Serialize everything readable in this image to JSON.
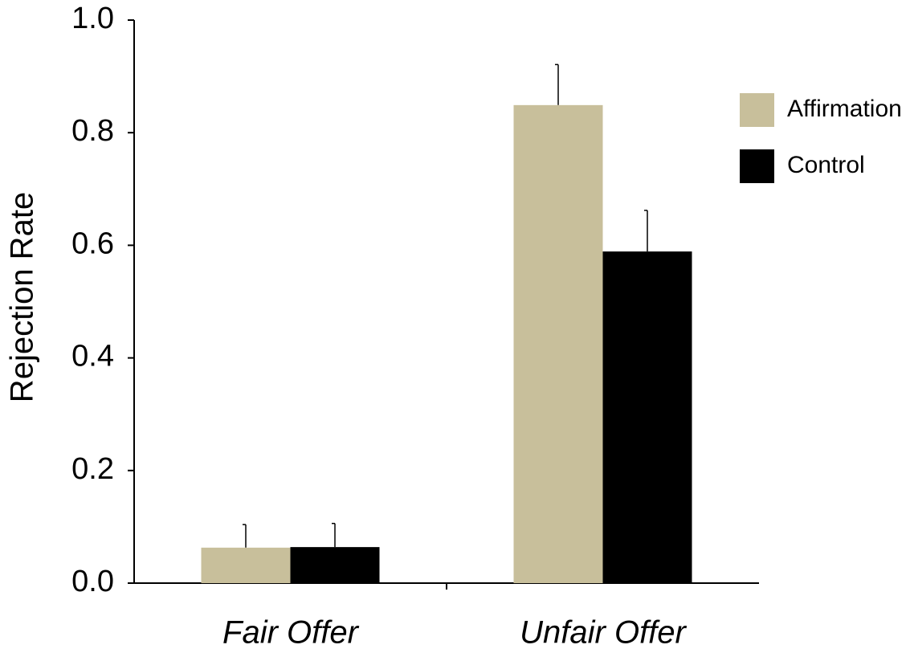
{
  "chart_data": {
    "type": "bar",
    "y_label": "Rejection Rate",
    "categories": [
      "Fair Offer",
      "Unfair Offer"
    ],
    "series": [
      {
        "name": "Affirmation",
        "color": "#c8bf9b",
        "values": [
          0.063,
          0.849
        ],
        "errors": [
          0.041,
          0.072
        ]
      },
      {
        "name": "Control",
        "color": "#000000",
        "values": [
          0.064,
          0.589
        ],
        "errors": [
          0.042,
          0.073
        ]
      }
    ],
    "ylim": [
      0,
      1
    ],
    "yticks": [
      {
        "value": 0,
        "label": "0.0"
      },
      0.2,
      0.4,
      0.6,
      0.8,
      {
        "value": 1,
        "label": "1.0"
      }
    ],
    "grid": false,
    "legend": "right"
  }
}
